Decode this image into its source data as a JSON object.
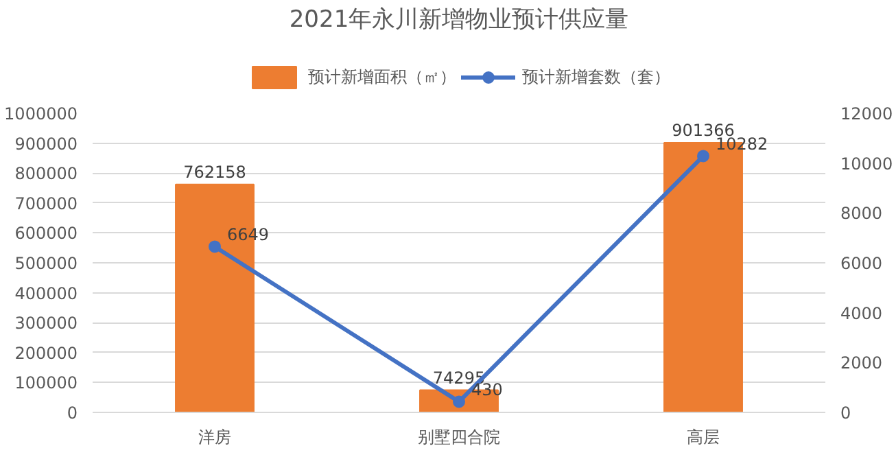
{
  "chart_data": {
    "type": "bar",
    "title": "2021年永川新增物业预计供应量",
    "categories": [
      "洋房",
      "别墅四合院",
      "高层"
    ],
    "series": [
      {
        "name": "预计新增面积（㎡）",
        "color": "#ed7d31",
        "values": [
          762158,
          74295,
          901366
        ]
      },
      {
        "name": "预计新增套数（套）",
        "type": "line",
        "axis": "y2",
        "color": "#4472c4",
        "values": [
          6649,
          430,
          10282
        ],
        "marker": "circle"
      }
    ],
    "ylim": [
      0,
      1000000
    ],
    "yticks": [
      0,
      100000,
      200000,
      300000,
      400000,
      500000,
      600000,
      700000,
      800000,
      900000,
      1000000
    ],
    "y2lim": [
      0,
      12000
    ],
    "y2ticks": [
      0,
      2000,
      4000,
      6000,
      8000,
      10000,
      12000
    ],
    "grid": "y",
    "legend": "top",
    "data_labels": true
  }
}
